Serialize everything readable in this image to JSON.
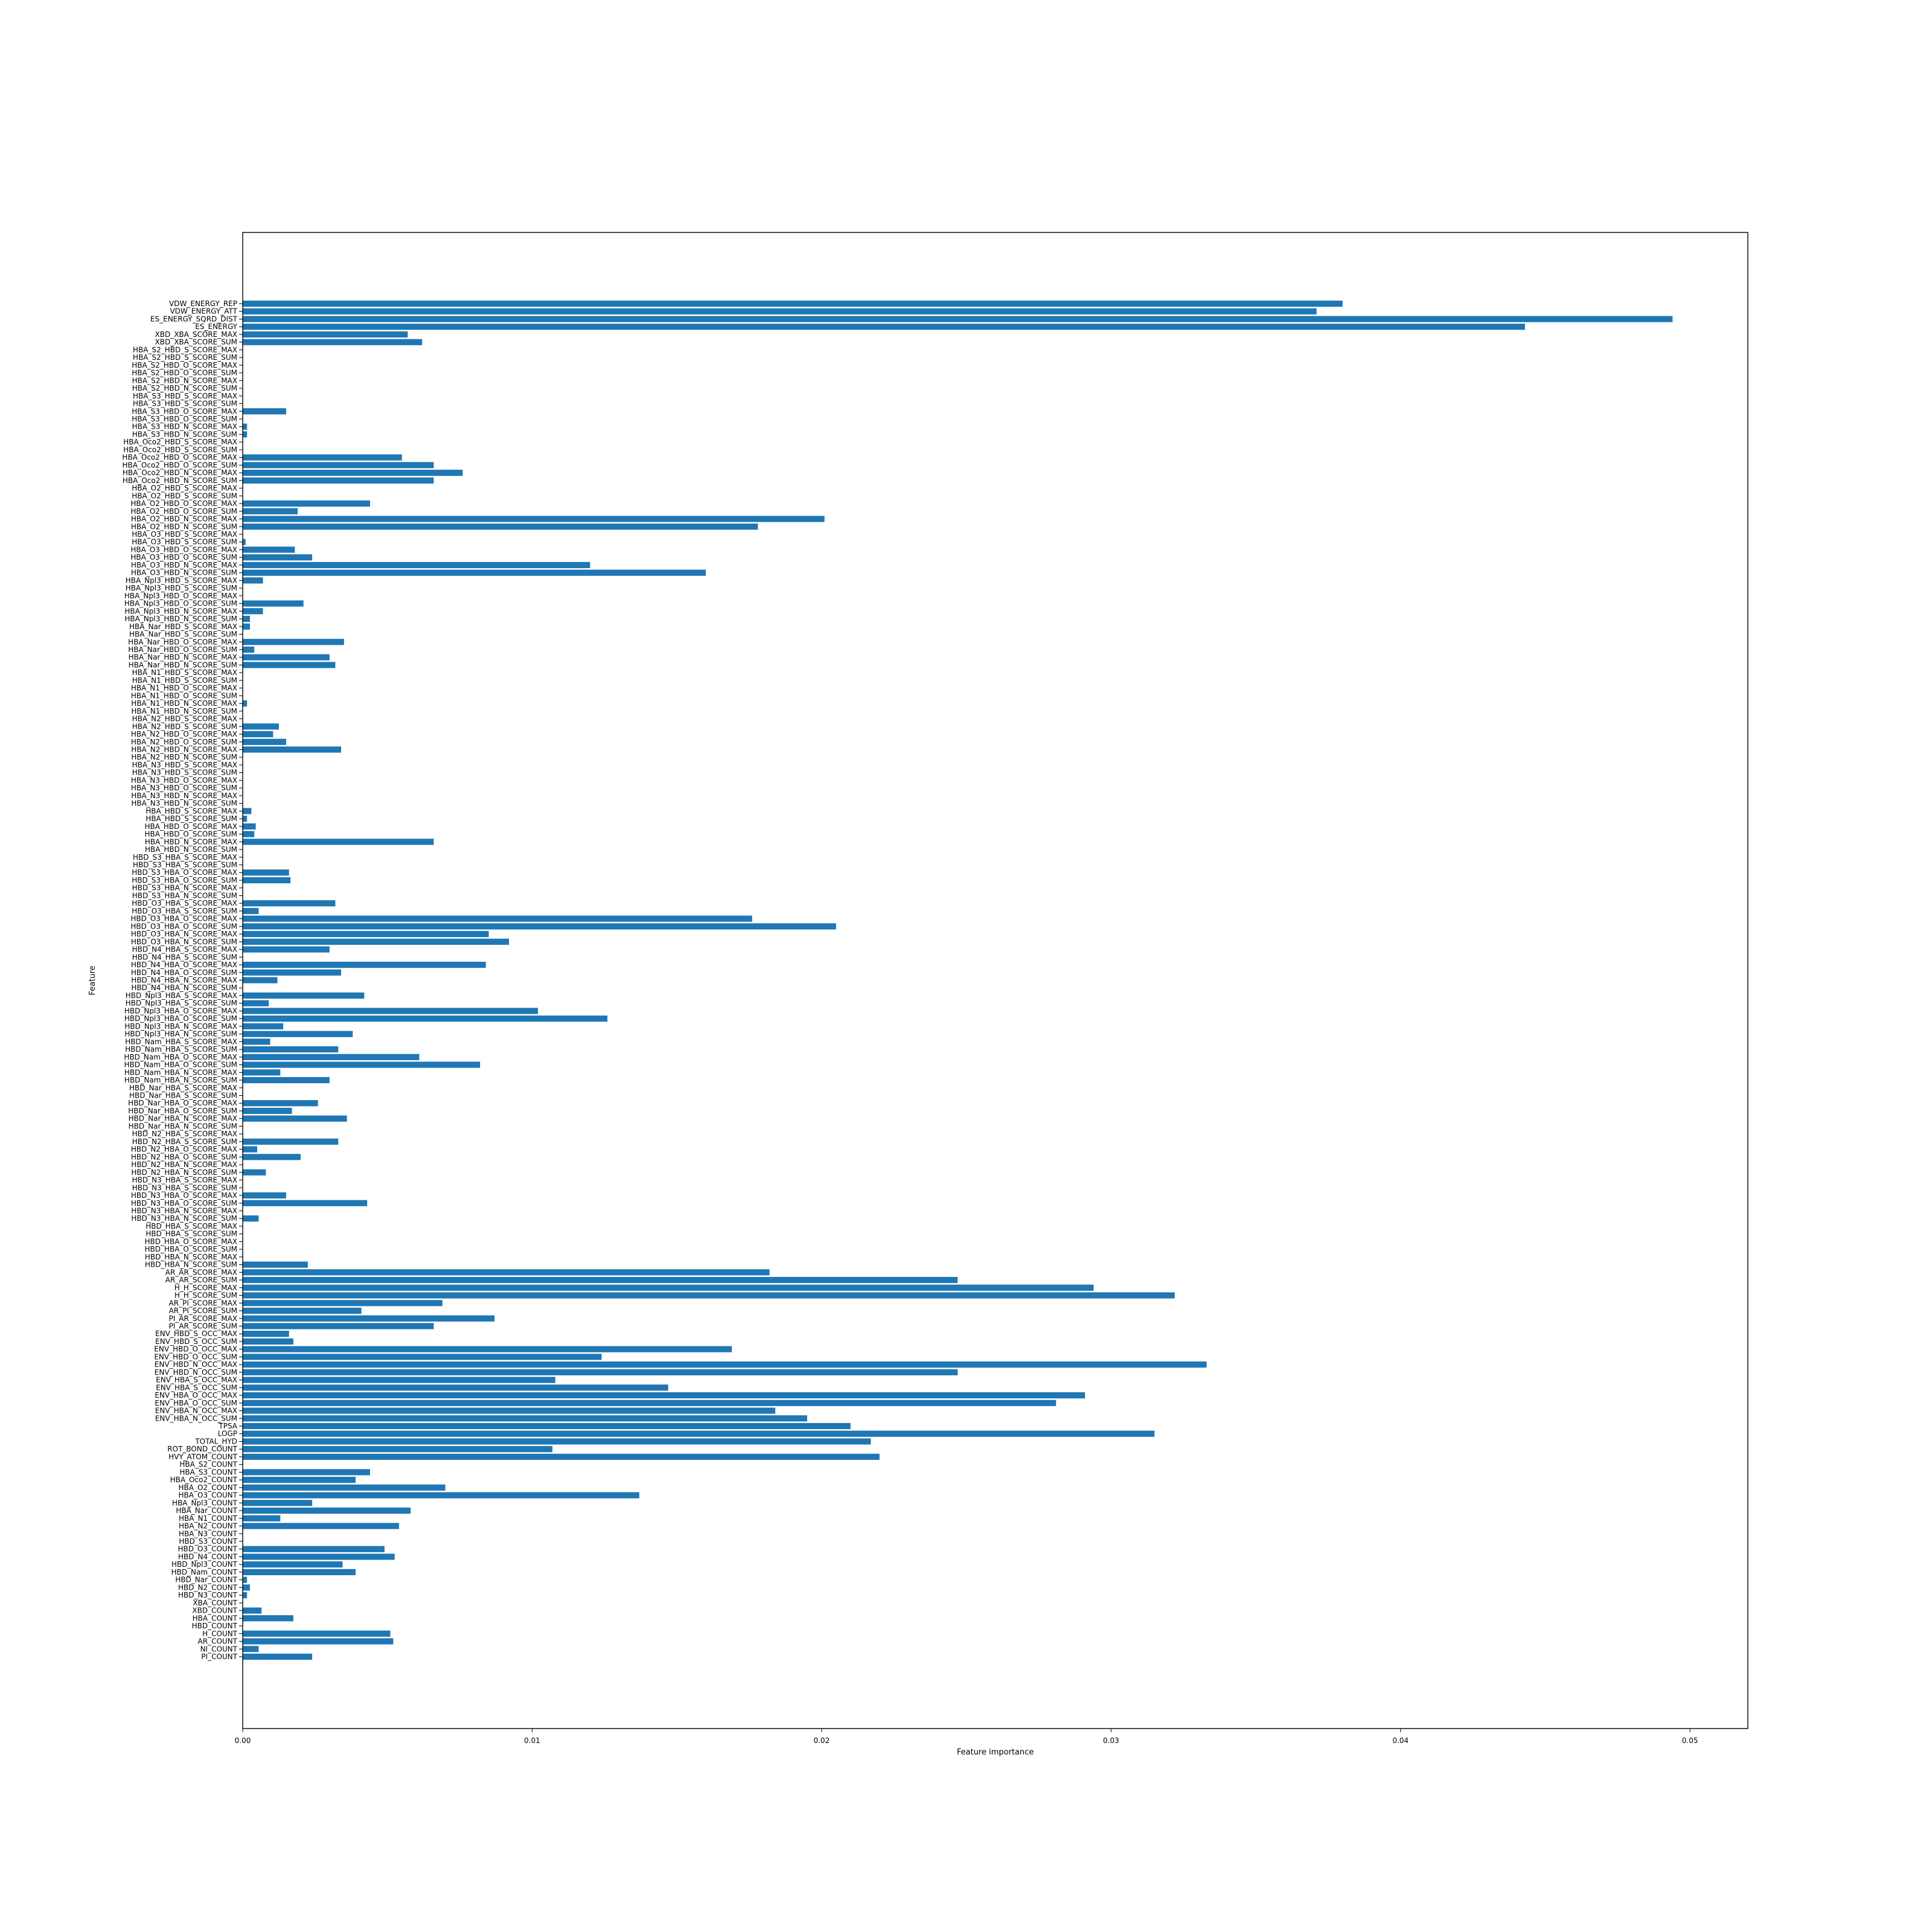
{
  "chart_data": {
    "type": "bar",
    "orientation": "horizontal",
    "xlabel": "Feature importance",
    "ylabel": "Feature",
    "xlim": [
      0,
      0.052
    ],
    "xticks": [
      0.0,
      0.01,
      0.02,
      0.03,
      0.04,
      0.05
    ],
    "xtick_labels": [
      "0.00",
      "0.01",
      "0.02",
      "0.03",
      "0.04",
      "0.05"
    ],
    "bar_color": "#1f77b4",
    "grid": false,
    "categories": [
      "PI_COUNT",
      "NI_COUNT",
      "AR_COUNT",
      "H_COUNT",
      "HBD_COUNT",
      "HBA_COUNT",
      "XBD_COUNT",
      "XBA_COUNT",
      "HBD_N3_COUNT",
      "HBD_N2_COUNT",
      "HBD_Nar_COUNT",
      "HBD_Nam_COUNT",
      "HBD_Npl3_COUNT",
      "HBD_N4_COUNT",
      "HBD_O3_COUNT",
      "HBD_S3_COUNT",
      "HBA_N3_COUNT",
      "HBA_N2_COUNT",
      "HBA_N1_COUNT",
      "HBA_Nar_COUNT",
      "HBA_Npl3_COUNT",
      "HBA_O3_COUNT",
      "HBA_O2_COUNT",
      "HBA_Oco2_COUNT",
      "HBA_S3_COUNT",
      "HBA_S2_COUNT",
      "HVY_ATOM_COUNT",
      "ROT_BOND_COUNT",
      "TOTAL_HYD",
      "LOGP",
      "TPSA",
      "ENV_HBA_N_OCC_SUM",
      "ENV_HBA_N_OCC_MAX",
      "ENV_HBA_O_OCC_SUM",
      "ENV_HBA_O_OCC_MAX",
      "ENV_HBA_S_OCC_SUM",
      "ENV_HBA_S_OCC_MAX",
      "ENV_HBD_N_OCC_SUM",
      "ENV_HBD_N_OCC_MAX",
      "ENV_HBD_O_OCC_SUM",
      "ENV_HBD_O_OCC_MAX",
      "ENV_HBD_S_OCC_SUM",
      "ENV_HBD_S_OCC_MAX",
      "PI_AR_SCORE_SUM",
      "PI_AR_SCORE_MAX",
      "AR_PI_SCORE_SUM",
      "AR_PI_SCORE_MAX",
      "H_H_SCORE_SUM",
      "H_H_SCORE_MAX",
      "AR_AR_SCORE_SUM",
      "AR_AR_SCORE_MAX",
      "HBD_HBA_N_SCORE_SUM",
      "HBD_HBA_N_SCORE_MAX",
      "HBD_HBA_O_SCORE_SUM",
      "HBD_HBA_O_SCORE_MAX",
      "HBD_HBA_S_SCORE_SUM",
      "HBD_HBA_S_SCORE_MAX",
      "HBD_N3_HBA_N_SCORE_SUM",
      "HBD_N3_HBA_N_SCORE_MAX",
      "HBD_N3_HBA_O_SCORE_SUM",
      "HBD_N3_HBA_O_SCORE_MAX",
      "HBD_N3_HBA_S_SCORE_SUM",
      "HBD_N3_HBA_S_SCORE_MAX",
      "HBD_N2_HBA_N_SCORE_SUM",
      "HBD_N2_HBA_N_SCORE_MAX",
      "HBD_N2_HBA_O_SCORE_SUM",
      "HBD_N2_HBA_O_SCORE_MAX",
      "HBD_N2_HBA_S_SCORE_SUM",
      "HBD_N2_HBA_S_SCORE_MAX",
      "HBD_Nar_HBA_N_SCORE_SUM",
      "HBD_Nar_HBA_N_SCORE_MAX",
      "HBD_Nar_HBA_O_SCORE_SUM",
      "HBD_Nar_HBA_O_SCORE_MAX",
      "HBD_Nar_HBA_S_SCORE_SUM",
      "HBD_Nar_HBA_S_SCORE_MAX",
      "HBD_Nam_HBA_N_SCORE_SUM",
      "HBD_Nam_HBA_N_SCORE_MAX",
      "HBD_Nam_HBA_O_SCORE_SUM",
      "HBD_Nam_HBA_O_SCORE_MAX",
      "HBD_Nam_HBA_S_SCORE_SUM",
      "HBD_Nam_HBA_S_SCORE_MAX",
      "HBD_Npl3_HBA_N_SCORE_SUM",
      "HBD_Npl3_HBA_N_SCORE_MAX",
      "HBD_Npl3_HBA_O_SCORE_SUM",
      "HBD_Npl3_HBA_O_SCORE_MAX",
      "HBD_Npl3_HBA_S_SCORE_SUM",
      "HBD_Npl3_HBA_S_SCORE_MAX",
      "HBD_N4_HBA_N_SCORE_SUM",
      "HBD_N4_HBA_N_SCORE_MAX",
      "HBD_N4_HBA_O_SCORE_SUM",
      "HBD_N4_HBA_O_SCORE_MAX",
      "HBD_N4_HBA_S_SCORE_SUM",
      "HBD_N4_HBA_S_SCORE_MAX",
      "HBD_O3_HBA_N_SCORE_SUM",
      "HBD_O3_HBA_N_SCORE_MAX",
      "HBD_O3_HBA_O_SCORE_SUM",
      "HBD_O3_HBA_O_SCORE_MAX",
      "HBD_O3_HBA_S_SCORE_SUM",
      "HBD_O3_HBA_S_SCORE_MAX",
      "HBD_S3_HBA_N_SCORE_SUM",
      "HBD_S3_HBA_N_SCORE_MAX",
      "HBD_S3_HBA_O_SCORE_SUM",
      "HBD_S3_HBA_O_SCORE_MAX",
      "HBD_S3_HBA_S_SCORE_SUM",
      "HBD_S3_HBA_S_SCORE_MAX",
      "HBA_HBD_N_SCORE_SUM",
      "HBA_HBD_N_SCORE_MAX",
      "HBA_HBD_O_SCORE_SUM",
      "HBA_HBD_O_SCORE_MAX",
      "HBA_HBD_S_SCORE_SUM",
      "HBA_HBD_S_SCORE_MAX",
      "HBA_N3_HBD_N_SCORE_SUM",
      "HBA_N3_HBD_N_SCORE_MAX",
      "HBA_N3_HBD_O_SCORE_SUM",
      "HBA_N3_HBD_O_SCORE_MAX",
      "HBA_N3_HBD_S_SCORE_SUM",
      "HBA_N3_HBD_S_SCORE_MAX",
      "HBA_N2_HBD_N_SCORE_SUM",
      "HBA_N2_HBD_N_SCORE_MAX",
      "HBA_N2_HBD_O_SCORE_SUM",
      "HBA_N2_HBD_O_SCORE_MAX",
      "HBA_N2_HBD_S_SCORE_SUM",
      "HBA_N2_HBD_S_SCORE_MAX",
      "HBA_N1_HBD_N_SCORE_SUM",
      "HBA_N1_HBD_N_SCORE_MAX",
      "HBA_N1_HBD_O_SCORE_SUM",
      "HBA_N1_HBD_O_SCORE_MAX",
      "HBA_N1_HBD_S_SCORE_SUM",
      "HBA_N1_HBD_S_SCORE_MAX",
      "HBA_Nar_HBD_N_SCORE_SUM",
      "HBA_Nar_HBD_N_SCORE_MAX",
      "HBA_Nar_HBD_O_SCORE_SUM",
      "HBA_Nar_HBD_O_SCORE_MAX",
      "HBA_Nar_HBD_S_SCORE_SUM",
      "HBA_Nar_HBD_S_SCORE_MAX",
      "HBA_Npl3_HBD_N_SCORE_SUM",
      "HBA_Npl3_HBD_N_SCORE_MAX",
      "HBA_Npl3_HBD_O_SCORE_SUM",
      "HBA_Npl3_HBD_O_SCORE_MAX",
      "HBA_Npl3_HBD_S_SCORE_SUM",
      "HBA_Npl3_HBD_S_SCORE_MAX",
      "HBA_O3_HBD_N_SCORE_SUM",
      "HBA_O3_HBD_N_SCORE_MAX",
      "HBA_O3_HBD_O_SCORE_SUM",
      "HBA_O3_HBD_O_SCORE_MAX",
      "HBA_O3_HBD_S_SCORE_SUM",
      "HBA_O3_HBD_S_SCORE_MAX",
      "HBA_O2_HBD_N_SCORE_SUM",
      "HBA_O2_HBD_N_SCORE_MAX",
      "HBA_O2_HBD_O_SCORE_SUM",
      "HBA_O2_HBD_O_SCORE_MAX",
      "HBA_O2_HBD_S_SCORE_SUM",
      "HBA_O2_HBD_S_SCORE_MAX",
      "HBA_Oco2_HBD_N_SCORE_SUM",
      "HBA_Oco2_HBD_N_SCORE_MAX",
      "HBA_Oco2_HBD_O_SCORE_SUM",
      "HBA_Oco2_HBD_O_SCORE_MAX",
      "HBA_Oco2_HBD_S_SCORE_SUM",
      "HBA_Oco2_HBD_S_SCORE_MAX",
      "HBA_S3_HBD_N_SCORE_SUM",
      "HBA_S3_HBD_N_SCORE_MAX",
      "HBA_S3_HBD_O_SCORE_SUM",
      "HBA_S3_HBD_O_SCORE_MAX",
      "HBA_S3_HBD_S_SCORE_SUM",
      "HBA_S3_HBD_S_SCORE_MAX",
      "HBA_S2_HBD_N_SCORE_SUM",
      "HBA_S2_HBD_N_SCORE_MAX",
      "HBA_S2_HBD_O_SCORE_SUM",
      "HBA_S2_HBD_O_SCORE_MAX",
      "HBA_S2_HBD_S_SCORE_SUM",
      "HBA_S2_HBD_S_SCORE_MAX",
      "XBD_XBA_SCORE_SUM",
      "XBD_XBA_SCORE_MAX",
      "ES_ENERGY",
      "ES_ENERGY_SQRD_DIST",
      "VDW_ENERGY_ATT",
      "VDW_ENERGY_REP"
    ],
    "values": [
      0.0024,
      0.00055,
      0.0052,
      0.0051,
      0.0,
      0.00175,
      0.00065,
      0.0,
      0.00015,
      0.00025,
      0.00015,
      0.0039,
      0.00345,
      0.00525,
      0.0049,
      0.0,
      0.0,
      0.0054,
      0.0013,
      0.0058,
      0.0024,
      0.0137,
      0.007,
      0.0039,
      0.0044,
      0.0,
      0.022,
      0.0107,
      0.0217,
      0.0315,
      0.021,
      0.0195,
      0.0184,
      0.0281,
      0.0291,
      0.0147,
      0.0108,
      0.0247,
      0.0333,
      0.0124,
      0.0169,
      0.00175,
      0.0016,
      0.0066,
      0.0087,
      0.0041,
      0.0069,
      0.0322,
      0.0294,
      0.0247,
      0.0182,
      0.00225,
      0.0,
      0.0,
      0.0,
      0.0,
      0.0,
      0.00055,
      0.0,
      0.0043,
      0.0015,
      0.0,
      0.0,
      0.0008,
      0.0,
      0.002,
      0.0005,
      0.0033,
      0.0,
      0.0,
      0.0036,
      0.0017,
      0.0026,
      0.0,
      0.0,
      0.003,
      0.0013,
      0.0082,
      0.0061,
      0.0033,
      0.00095,
      0.0038,
      0.0014,
      0.0126,
      0.0102,
      0.0009,
      0.0042,
      0.0,
      0.0012,
      0.0034,
      0.0084,
      0.0,
      0.003,
      0.0092,
      0.0085,
      0.0205,
      0.0176,
      0.00055,
      0.0032,
      0.0,
      0.0,
      0.00165,
      0.0016,
      0.0,
      0.0,
      0.0,
      0.0066,
      0.0004,
      0.00045,
      0.00015,
      0.0003,
      0.0,
      0.0,
      0.0,
      0.0,
      0.0,
      0.0,
      0.0,
      0.0034,
      0.0015,
      0.00105,
      0.00125,
      0.0,
      0.0,
      0.00015,
      0.0,
      0.0,
      0.0,
      0.0,
      0.0032,
      0.003,
      0.0004,
      0.0035,
      0.0,
      0.00025,
      0.00025,
      0.0007,
      0.0021,
      0.0,
      0.0,
      0.0007,
      0.016,
      0.012,
      0.0024,
      0.0018,
      0.0001,
      0.0,
      0.0178,
      0.0201,
      0.0019,
      0.0044,
      0.0,
      0.0,
      0.0066,
      0.0076,
      0.0066,
      0.0055,
      0.0,
      0.0,
      0.00015,
      0.00015,
      0.0,
      0.0015,
      0.0,
      0.0,
      0.0,
      0.0,
      0.0,
      0.0,
      0.0,
      0.0,
      0.0062,
      0.0057,
      0.0443,
      0.0494,
      0.0371,
      0.038
    ]
  }
}
